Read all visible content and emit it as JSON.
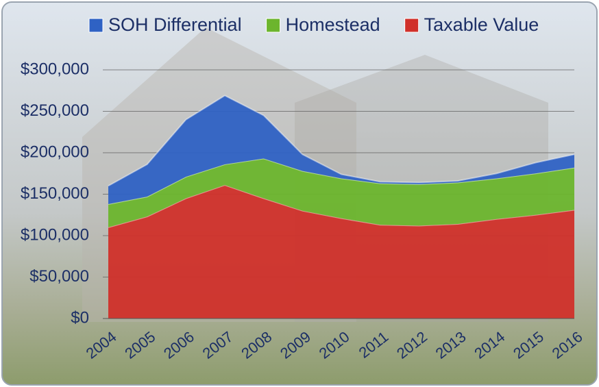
{
  "chart_data": {
    "type": "stacked-area",
    "categories": [
      "2004",
      "2005",
      "2006",
      "2007",
      "2008",
      "2009",
      "2010",
      "2011",
      "2012",
      "2013",
      "2014",
      "2015",
      "2016"
    ],
    "series": [
      {
        "name": "Taxable Value",
        "color": "#d0302a",
        "values": [
          110000,
          123000,
          145000,
          161000,
          145000,
          130000,
          121000,
          113000,
          112000,
          114000,
          120000,
          125000,
          131000
        ]
      },
      {
        "name": "Homestead",
        "color": "#6cb52d",
        "values": [
          28000,
          24000,
          26000,
          25000,
          48000,
          48000,
          48000,
          50000,
          50000,
          50000,
          49000,
          50000,
          51000
        ]
      },
      {
        "name": "SOH Differential",
        "color": "#2f62c4",
        "values": [
          22000,
          39000,
          69000,
          83000,
          52000,
          20000,
          5000,
          2000,
          2000,
          2000,
          6000,
          13000,
          16000
        ]
      }
    ],
    "legend_order": [
      2,
      1,
      0
    ],
    "ylim": [
      0,
      300000
    ],
    "yticks": [
      {
        "value": 0,
        "label": "$0"
      },
      {
        "value": 50000,
        "label": "$50,000"
      },
      {
        "value": 100000,
        "label": "$100,000"
      },
      {
        "value": 150000,
        "label": "$150,000"
      },
      {
        "value": 200000,
        "label": "$200,000"
      },
      {
        "value": 250000,
        "label": "$250,000"
      },
      {
        "value": 300000,
        "label": "$300,000"
      }
    ],
    "grid": true
  }
}
